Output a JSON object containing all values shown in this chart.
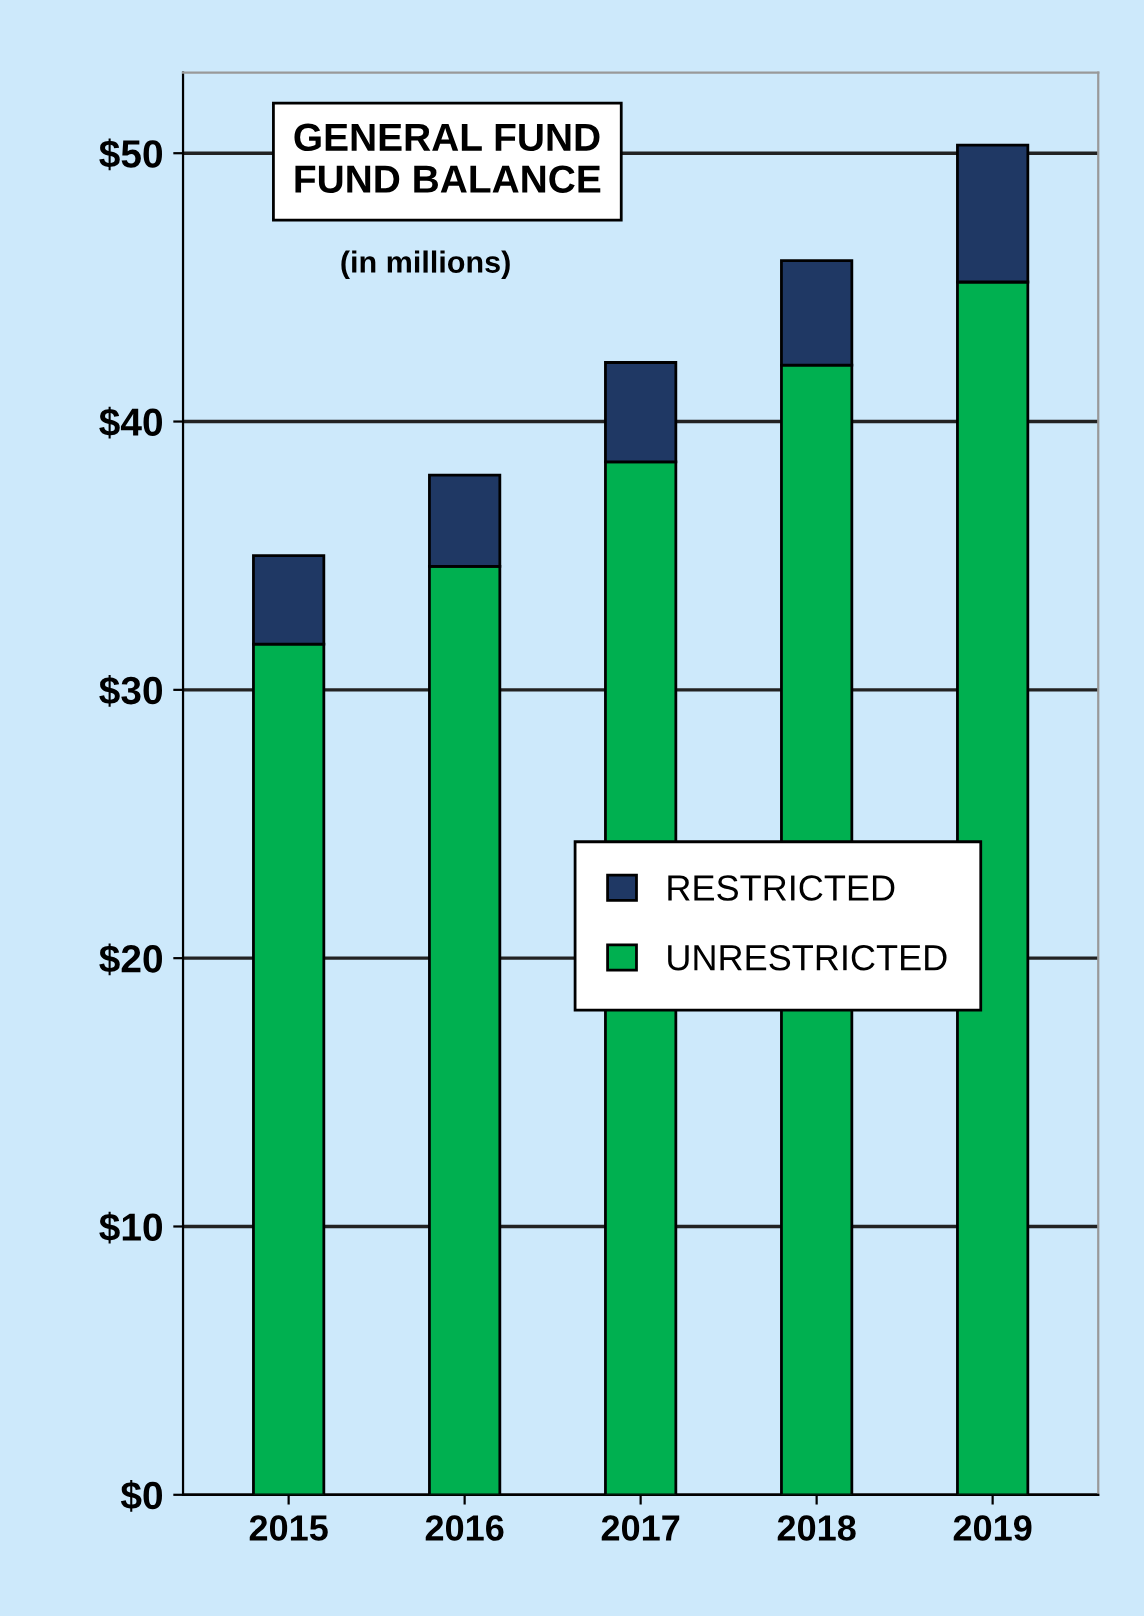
{
  "chart_data": {
    "type": "bar",
    "title": "GENERAL FUND\nFUND BALANCE",
    "subtitle": "(in millions)",
    "categories": [
      "2015",
      "2016",
      "2017",
      "2018",
      "2019"
    ],
    "stacked": true,
    "series": [
      {
        "name": "UNRESTRICTED",
        "color": "#00b050",
        "values": [
          31.7,
          34.6,
          38.5,
          42.1,
          45.2
        ]
      },
      {
        "name": "RESTRICTED",
        "color": "#1f3864",
        "values": [
          3.3,
          3.4,
          3.7,
          3.9,
          5.1
        ]
      }
    ],
    "ylim": [
      0,
      53
    ],
    "yticks": [
      {
        "value": 0,
        "label": "$0"
      },
      {
        "value": 10,
        "label": "$10"
      },
      {
        "value": 20,
        "label": "$20"
      },
      {
        "value": 30,
        "label": "$30"
      },
      {
        "value": 40,
        "label": "$40"
      },
      {
        "value": 50,
        "label": "$50"
      }
    ],
    "grid": "y",
    "legend": "center"
  }
}
